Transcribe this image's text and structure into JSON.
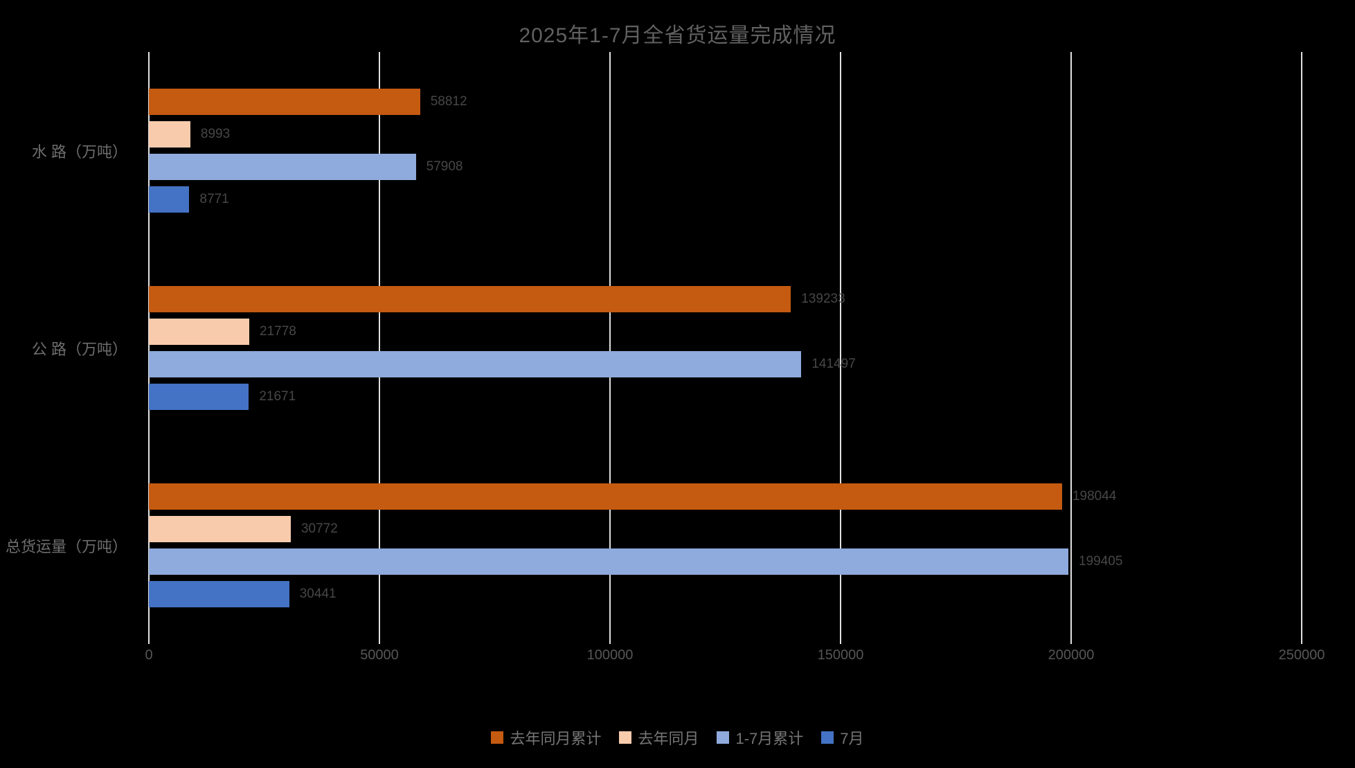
{
  "title": "2025年1-7月全省货运量完成情况",
  "chart_data": {
    "type": "bar",
    "orientation": "horizontal",
    "title": "2025年1-7月全省货运量完成情况",
    "categories": [
      "水 路（万吨）",
      "公 路（万吨）",
      "总货运量（万吨）"
    ],
    "series": [
      {
        "name": "去年同月累计",
        "color": "#C55A11",
        "values": [
          58812,
          139233,
          198044
        ]
      },
      {
        "name": "去年同月",
        "color": "#F8CBAD",
        "values": [
          8993,
          21778,
          30772
        ]
      },
      {
        "name": "1-7月累计",
        "color": "#8FAADC",
        "values": [
          57908,
          141497,
          199405
        ]
      },
      {
        "name": "7月",
        "color": "#4472C4",
        "values": [
          8771,
          21671,
          30441
        ]
      }
    ],
    "x_axis": {
      "min": 0,
      "max": 250000,
      "ticks": [
        0,
        50000,
        100000,
        150000,
        200000,
        250000
      ]
    },
    "grid": true,
    "legend_position": "bottom",
    "background": "#000000",
    "data_labels": true
  }
}
